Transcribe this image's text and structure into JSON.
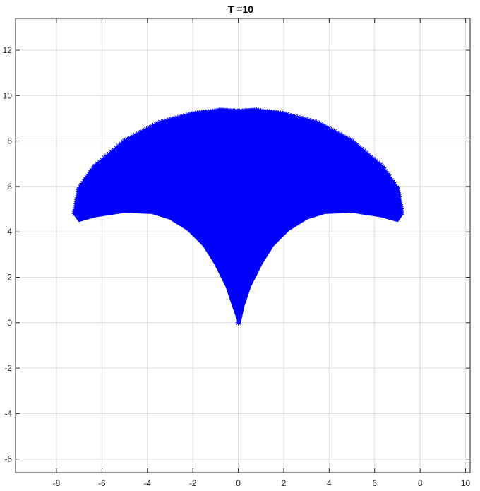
{
  "chart_data": {
    "type": "scatter",
    "title": "T =10",
    "xlabel": "",
    "ylabel": "",
    "xlim": [
      -9.8,
      10.2
    ],
    "ylim": [
      -6.6,
      13.4
    ],
    "xticks": [
      -8,
      -6,
      -4,
      -2,
      0,
      2,
      4,
      6,
      8,
      10
    ],
    "yticks": [
      -6,
      -4,
      -2,
      0,
      2,
      4,
      6,
      8,
      10,
      12
    ],
    "grid": true,
    "marker": "*",
    "marker_color": "#0000ff",
    "series": [
      {
        "region_boundary": {
          "upper": [
            [
              -7.2,
              4.8
            ],
            [
              -7.0,
              5.9
            ],
            [
              -6.3,
              6.9
            ],
            [
              -5.0,
              8.0
            ],
            [
              -3.5,
              8.8
            ],
            [
              -2.0,
              9.2
            ],
            [
              -0.8,
              9.35
            ],
            [
              0,
              9.3
            ],
            [
              0.8,
              9.35
            ],
            [
              2.0,
              9.2
            ],
            [
              3.5,
              8.8
            ],
            [
              5.0,
              8.0
            ],
            [
              6.3,
              6.9
            ],
            [
              7.0,
              5.9
            ],
            [
              7.2,
              4.8
            ]
          ],
          "right_lower": [
            [
              7.2,
              4.8
            ],
            [
              7.0,
              4.5
            ],
            [
              6.3,
              4.7
            ],
            [
              5.0,
              4.9
            ],
            [
              3.8,
              4.85
            ],
            [
              3.0,
              4.6
            ],
            [
              2.2,
              4.1
            ],
            [
              1.5,
              3.4
            ],
            [
              1.0,
              2.6
            ],
            [
              0.5,
              1.6
            ],
            [
              0.2,
              0.7
            ],
            [
              0.05,
              0.0
            ]
          ],
          "left_lower": [
            [
              -0.05,
              0.0
            ],
            [
              -0.2,
              0.7
            ],
            [
              -0.5,
              1.6
            ],
            [
              -1.0,
              2.6
            ],
            [
              -1.5,
              3.4
            ],
            [
              -2.2,
              4.1
            ],
            [
              -3.0,
              4.6
            ],
            [
              -3.8,
              4.85
            ],
            [
              -5.0,
              4.9
            ],
            [
              -6.3,
              4.7
            ],
            [
              -7.0,
              4.5
            ],
            [
              -7.2,
              4.8
            ]
          ]
        }
      }
    ]
  }
}
